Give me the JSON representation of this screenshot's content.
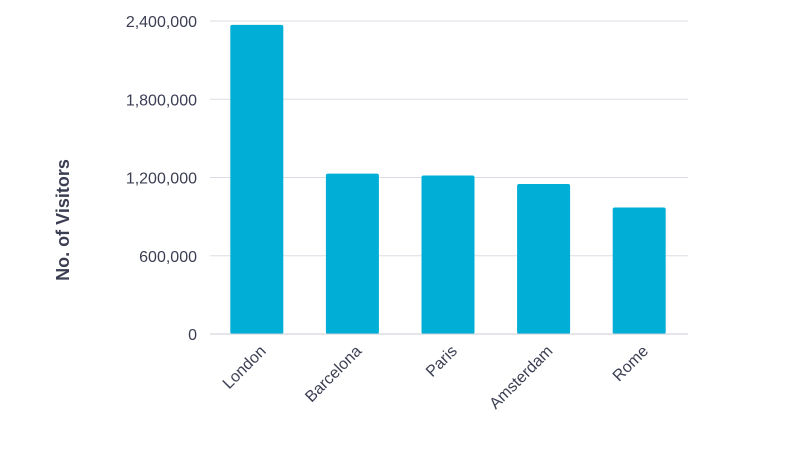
{
  "chart_data": {
    "type": "bar",
    "title": "",
    "xlabel": "",
    "ylabel": "No. of Visitors",
    "categories": [
      "London",
      "Barcelona",
      "Paris",
      "Amsterdam",
      "Rome"
    ],
    "values": [
      2370000,
      1230000,
      1215000,
      1150000,
      970000
    ],
    "ylim": [
      0,
      2400000
    ],
    "yticks": [
      0,
      600000,
      1200000,
      1800000,
      2400000
    ],
    "ytick_labels": [
      "0",
      "600,000",
      "1,200,000",
      "1,800,000",
      "2,400,000"
    ],
    "grid": true,
    "legend": "none",
    "colors": {
      "bar": "#00AED6",
      "text": "#3B3E52",
      "grid": "#DADDE3",
      "axis": "#C9CDD4"
    }
  }
}
